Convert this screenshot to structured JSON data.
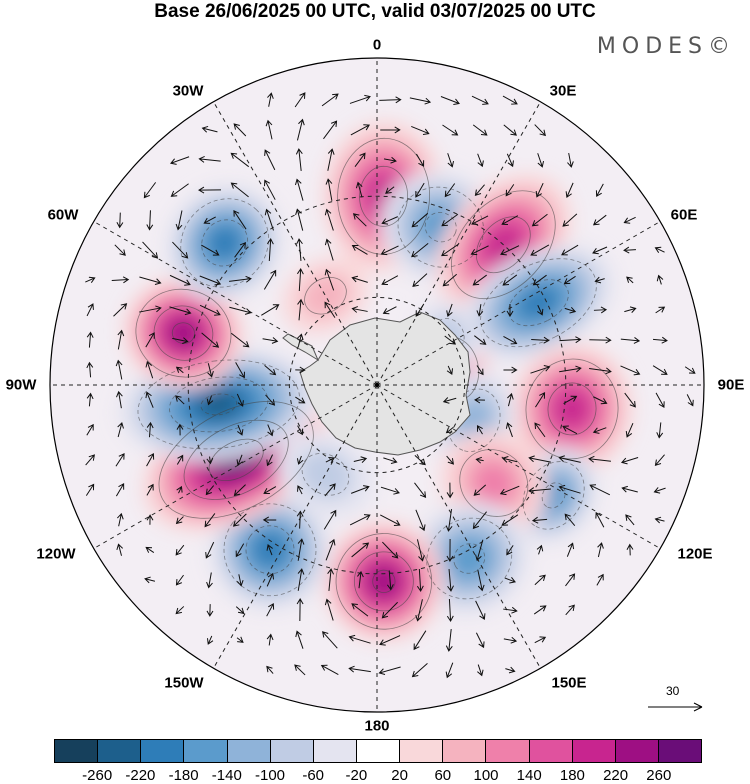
{
  "header": {
    "title": "Base 26/06/2025 00 UTC, valid 03/07/2025 00 UTC",
    "brand": "MODES©"
  },
  "longitude_labels": [
    "0",
    "30E",
    "60E",
    "90E",
    "120E",
    "150E",
    "180",
    "150W",
    "120W",
    "90W",
    "60W",
    "30W"
  ],
  "reference_vector": {
    "label": "30"
  },
  "colorbar": {
    "colors": [
      "#16405c",
      "#1d5f8c",
      "#2e7db8",
      "#5b9bcc",
      "#8fb3d9",
      "#c0cce4",
      "#e4e4f0",
      "#ffffff",
      "#f9d8da",
      "#f5b3bf",
      "#ef80aa",
      "#e0529e",
      "#c8258f",
      "#9e0f83",
      "#6a0d78"
    ],
    "ticks": [
      "-260",
      "-220",
      "-180",
      "-140",
      "-100",
      "-60",
      "-20",
      "20",
      "60",
      "100",
      "140",
      "180",
      "220",
      "260"
    ]
  },
  "anomaly_centers": [
    {
      "lon": 2,
      "lat": -30,
      "value": 180,
      "rx": 55,
      "ry": 70
    },
    {
      "lon": 22,
      "lat": -35,
      "value": -140,
      "rx": 55,
      "ry": 50
    },
    {
      "lon": 42,
      "lat": -30,
      "value": 180,
      "rx": 50,
      "ry": 75
    },
    {
      "lon": 63,
      "lat": -32,
      "value": -180,
      "rx": 45,
      "ry": 75
    },
    {
      "lon": 78,
      "lat": -63,
      "value": 140,
      "rx": 40,
      "ry": 30
    },
    {
      "lon": 55,
      "lat": -60,
      "value": -60,
      "rx": 30,
      "ry": 25
    },
    {
      "lon": 97,
      "lat": -28,
      "value": 180,
      "rx": 60,
      "ry": 55
    },
    {
      "lon": 110,
      "lat": -55,
      "value": -100,
      "rx": 45,
      "ry": 35
    },
    {
      "lon": 122,
      "lat": -25,
      "value": -140,
      "rx": 45,
      "ry": 35
    },
    {
      "lon": 130,
      "lat": -40,
      "value": 100,
      "rx": 45,
      "ry": 50
    },
    {
      "lon": 152,
      "lat": -28,
      "value": -140,
      "rx": 55,
      "ry": 50
    },
    {
      "lon": 178,
      "lat": -28,
      "value": 220,
      "rx": 55,
      "ry": 55
    },
    {
      "lon": -147,
      "lat": -28,
      "value": -180,
      "rx": 55,
      "ry": 55
    },
    {
      "lon": -118,
      "lat": -38,
      "value": 260,
      "rx": 55,
      "ry": 95
    },
    {
      "lon": -97,
      "lat": -38,
      "value": -220,
      "rx": 50,
      "ry": 95
    },
    {
      "lon": -75,
      "lat": -27,
      "value": 220,
      "rx": 50,
      "ry": 55
    },
    {
      "lon": -47,
      "lat": -25,
      "value": -180,
      "rx": 55,
      "ry": 50
    },
    {
      "lon": -150,
      "lat": -55,
      "value": -60,
      "rx": 45,
      "ry": 35
    },
    {
      "lon": -30,
      "lat": -55,
      "value": 60,
      "rx": 40,
      "ry": 30
    }
  ]
}
